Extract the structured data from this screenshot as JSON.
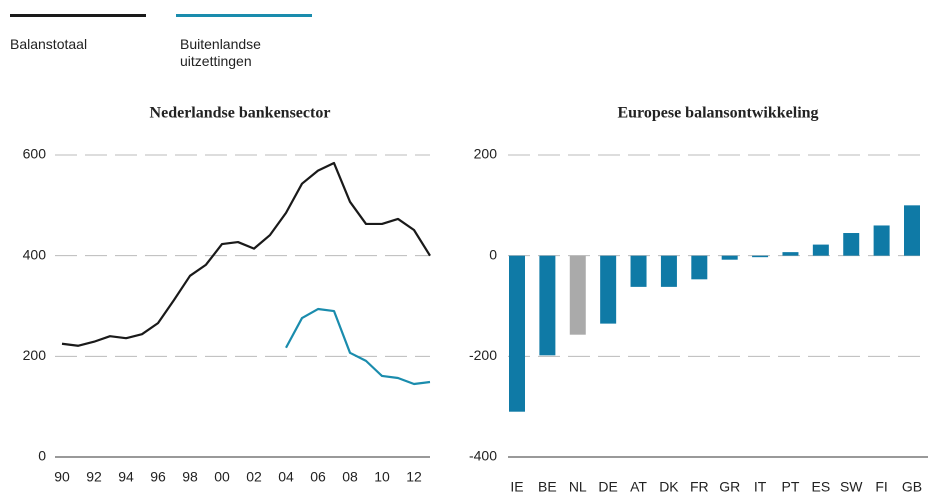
{
  "chart_data": [
    {
      "type": "line",
      "title": "Nederlandse bankensector",
      "categories": [
        "90",
        null,
        "92",
        null,
        "94",
        null,
        "96",
        null,
        "98",
        null,
        "00",
        null,
        "02",
        null,
        "04",
        null,
        "06",
        null,
        "08",
        null,
        "10",
        null,
        "12",
        null
      ],
      "series": [
        {
          "name": "Balanstotaal",
          "color": "#1a1a1a",
          "values": [
            225,
            221,
            229,
            240,
            236,
            244,
            266,
            312,
            360,
            382,
            423,
            427,
            414,
            441,
            485,
            543,
            569,
            584,
            507,
            463,
            463,
            473,
            451,
            400
          ]
        },
        {
          "name": "Buitenlandse uitzettingen",
          "color": "#1a8cad",
          "values": [
            null,
            null,
            null,
            null,
            null,
            null,
            null,
            null,
            null,
            null,
            null,
            null,
            null,
            null,
            217,
            276,
            294,
            290,
            207,
            191,
            161,
            157,
            145,
            149
          ]
        }
      ],
      "ylim": [
        0,
        600
      ],
      "yticks": [
        0,
        200,
        400,
        600
      ],
      "grid": true
    },
    {
      "type": "bar",
      "title": "Europese balansontwikkeling",
      "categories": [
        "IE",
        "BE",
        "NL",
        "DE",
        "AT",
        "DK",
        "FR",
        "GR",
        "IT",
        "PT",
        "ES",
        "SW",
        "FI",
        "GB"
      ],
      "values": [
        -310,
        -198,
        -157,
        -135,
        -62,
        -62,
        -47,
        -8,
        -3,
        7,
        22,
        45,
        60,
        100
      ],
      "colors": [
        "#0f7aa6",
        "#0f7aa6",
        "#aaaaaa",
        "#0f7aa6",
        "#0f7aa6",
        "#0f7aa6",
        "#0f7aa6",
        "#0f7aa6",
        "#0f7aa6",
        "#0f7aa6",
        "#0f7aa6",
        "#0f7aa6",
        "#0f7aa6",
        "#0f7aa6"
      ],
      "ylim": [
        -400,
        200
      ],
      "yticks": [
        -400,
        -200,
        0,
        200
      ],
      "grid": true
    }
  ]
}
